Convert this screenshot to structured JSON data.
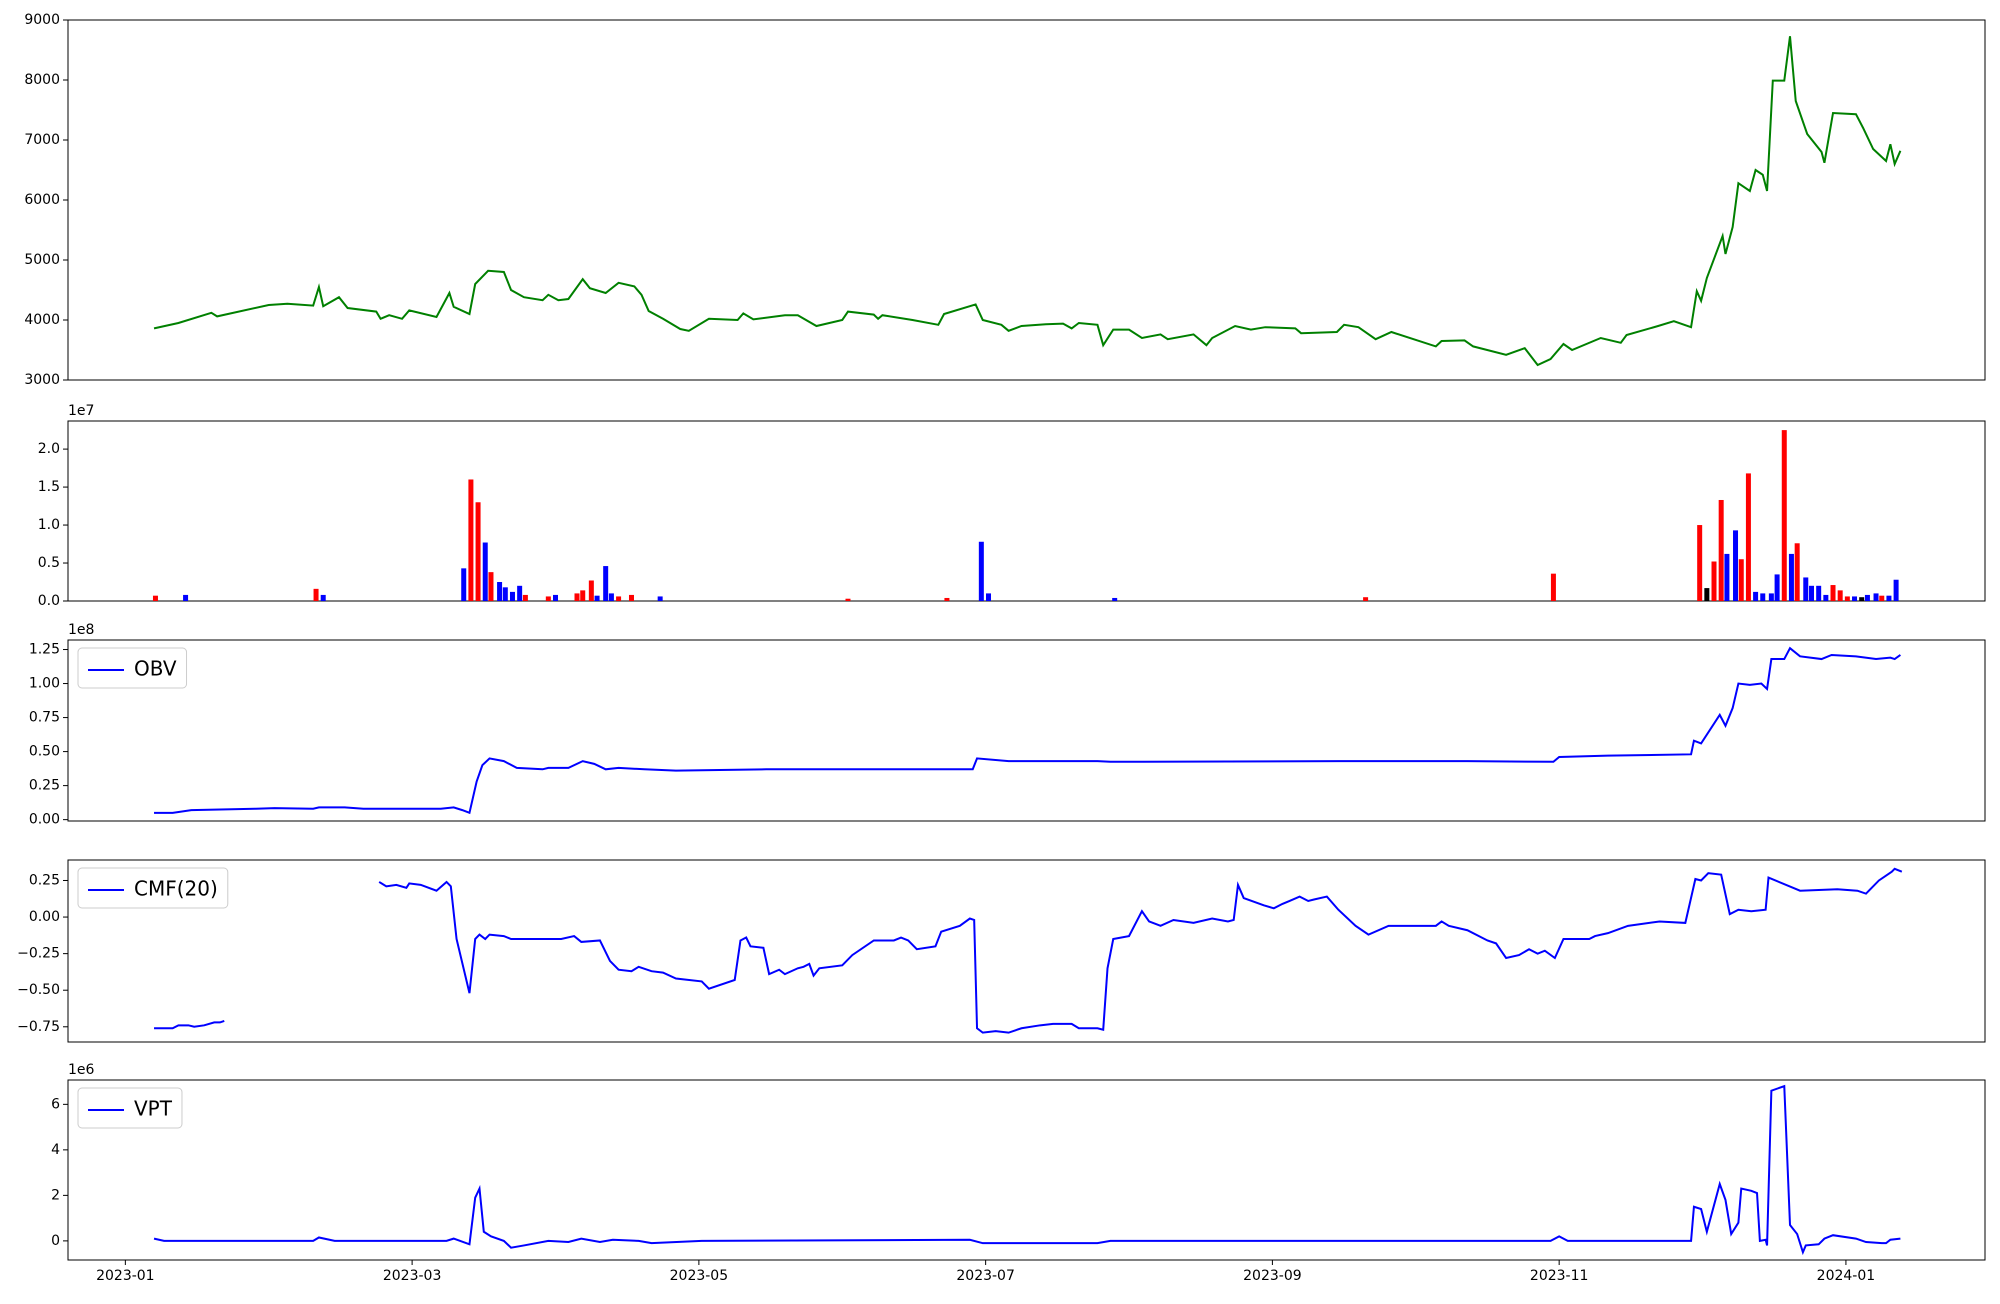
{
  "chart_data": [
    {
      "type": "line",
      "color": "#008000",
      "xlim": [
        -0.4,
        12.97
      ],
      "ylim": [
        3000,
        9000
      ],
      "yticks": [
        3000,
        4000,
        5000,
        6000,
        7000,
        8000,
        9000
      ],
      "x": [
        0.2,
        0.37,
        0.6,
        0.64,
        1.0,
        1.13,
        1.31,
        1.35,
        1.38,
        1.49,
        1.55,
        1.75,
        1.78,
        1.84,
        1.93,
        1.98,
        2.17,
        2.26,
        2.29,
        2.4,
        2.44,
        2.53,
        2.64,
        2.69,
        2.78,
        2.91,
        2.95,
        3.02,
        3.09,
        3.19,
        3.24,
        3.35,
        3.44,
        3.55,
        3.6,
        3.65,
        3.75,
        3.87,
        3.93,
        4.07,
        4.27,
        4.31,
        4.38,
        4.6,
        4.69,
        4.82,
        5.0,
        5.04,
        5.22,
        5.25,
        5.28,
        5.49,
        5.67,
        5.71,
        5.93,
        5.98,
        6.11,
        6.16,
        6.25,
        6.42,
        6.54,
        6.6,
        6.65,
        6.78,
        6.82,
        6.89,
        7.0,
        7.09,
        7.22,
        7.27,
        7.45,
        7.54,
        7.58,
        7.74,
        7.85,
        7.95,
        8.16,
        8.2,
        8.45,
        8.5,
        8.6,
        8.72,
        8.83,
        9.14,
        9.18,
        9.34,
        9.4,
        9.63,
        9.76,
        9.85,
        9.94,
        10.03,
        10.09,
        10.29,
        10.43,
        10.47,
        10.69,
        10.8,
        10.92,
        10.96,
        10.99,
        11.03,
        11.14,
        11.16,
        11.21,
        11.25,
        11.33,
        11.37,
        11.42,
        11.45,
        11.49,
        11.57,
        11.61,
        11.65,
        11.73,
        11.83,
        11.85,
        11.91,
        12.07,
        12.12,
        12.19,
        12.28,
        12.31,
        12.34,
        12.38
      ],
      "values": [
        3860,
        3950,
        4120,
        4060,
        4250,
        4270,
        4240,
        4550,
        4230,
        4380,
        4200,
        4140,
        4020,
        4080,
        4020,
        4160,
        4050,
        4450,
        4220,
        4100,
        4600,
        4820,
        4800,
        4500,
        4380,
        4330,
        4420,
        4330,
        4350,
        4680,
        4530,
        4450,
        4620,
        4560,
        4420,
        4150,
        4020,
        3850,
        3820,
        4020,
        4000,
        4110,
        4010,
        4080,
        4080,
        3900,
        4000,
        4140,
        4090,
        4020,
        4080,
        4000,
        3920,
        4100,
        4260,
        4000,
        3920,
        3820,
        3900,
        3930,
        3940,
        3860,
        3950,
        3920,
        3580,
        3840,
        3840,
        3700,
        3760,
        3680,
        3760,
        3580,
        3700,
        3900,
        3840,
        3880,
        3860,
        3780,
        3800,
        3920,
        3880,
        3680,
        3800,
        3560,
        3650,
        3660,
        3560,
        3420,
        3530,
        3250,
        3350,
        3600,
        3500,
        3700,
        3620,
        3750,
        3900,
        3980,
        3880,
        4480,
        4320,
        4700,
        5400,
        5100,
        5550,
        6280,
        6150,
        6500,
        6420,
        6150,
        7990,
        7990,
        8730,
        7650,
        7100,
        6800,
        6620,
        7450,
        7430,
        7200,
        6850,
        6650,
        6930,
        6600,
        6820
      ]
    },
    {
      "type": "bar",
      "y_offset_label": "1e7",
      "xlim": [
        -0.4,
        12.97
      ],
      "ylim": [
        0,
        2.37
      ],
      "yticks": [
        {
          "value": 0,
          "label": "0.0"
        },
        0.5,
        {
          "value": 1,
          "label": "1.0"
        },
        1.5,
        {
          "value": 2,
          "label": "2.0"
        }
      ],
      "x": [
        0.21,
        0.42,
        1.33,
        1.38,
        2.36,
        2.41,
        2.46,
        2.51,
        2.55,
        2.61,
        2.65,
        2.7,
        2.75,
        2.79,
        2.95,
        3.0,
        3.15,
        3.19,
        3.25,
        3.29,
        3.35,
        3.39,
        3.44,
        3.53,
        3.73,
        5.04,
        5.73,
        5.97,
        6.02,
        6.9,
        8.65,
        9.96,
        10.98,
        11.03,
        11.08,
        11.13,
        11.17,
        11.23,
        11.27,
        11.32,
        11.37,
        11.42,
        11.48,
        11.52,
        11.57,
        11.62,
        11.66,
        11.72,
        11.76,
        11.81,
        11.86,
        11.91,
        11.96,
        12.01,
        12.06,
        12.11,
        12.15,
        12.21,
        12.25,
        12.3,
        12.35
      ],
      "values": [
        0.07,
        0.08,
        0.16,
        0.08,
        0.43,
        1.6,
        1.3,
        0.77,
        0.38,
        0.25,
        0.18,
        0.12,
        0.2,
        0.08,
        0.06,
        0.08,
        0.1,
        0.14,
        0.27,
        0.07,
        0.46,
        0.1,
        0.06,
        0.08,
        0.06,
        0.03,
        0.04,
        0.78,
        0.1,
        0.04,
        0.05,
        0.36,
        1.0,
        0.17,
        0.52,
        1.33,
        0.62,
        0.93,
        0.55,
        1.68,
        0.12,
        0.1,
        0.1,
        0.35,
        2.25,
        0.62,
        0.76,
        0.31,
        0.2,
        0.2,
        0.08,
        0.21,
        0.14,
        0.06,
        0.06,
        0.05,
        0.08,
        0.1,
        0.07,
        0.07,
        0.28
      ],
      "colors": [
        "red",
        "blue",
        "red",
        "blue",
        "blue",
        "red",
        "red",
        "blue",
        "red",
        "blue",
        "blue",
        "blue",
        "blue",
        "red",
        "red",
        "blue",
        "red",
        "red",
        "red",
        "blue",
        "blue",
        "blue",
        "red",
        "red",
        "blue",
        "red",
        "red",
        "blue",
        "blue",
        "blue",
        "red",
        "red",
        "red",
        "black",
        "red",
        "red",
        "blue",
        "blue",
        "red",
        "red",
        "blue",
        "blue",
        "blue",
        "blue",
        "red",
        "blue",
        "red",
        "blue",
        "blue",
        "blue",
        "blue",
        "red",
        "red",
        "red",
        "blue",
        "black",
        "blue",
        "blue",
        "red",
        "blue",
        "blue"
      ]
    },
    {
      "type": "line",
      "y_offset_label": "1e8",
      "legend": "upper left",
      "xlim": [
        -0.4,
        12.97
      ],
      "ylim": [
        -0.01,
        1.32
      ],
      "yticks": [
        {
          "value": 0,
          "label": "0.00"
        },
        0.25,
        {
          "value": 0.5,
          "label": "0.50"
        },
        0.75,
        {
          "value": 1,
          "label": "1.00"
        },
        1.25
      ],
      "x": [
        0.2,
        0.33,
        0.46,
        0.91,
        1.04,
        1.31,
        1.35,
        1.53,
        1.66,
        2.2,
        2.29,
        2.35,
        2.4,
        2.45,
        2.49,
        2.54,
        2.64,
        2.73,
        2.91,
        2.95,
        3.09,
        3.19,
        3.27,
        3.35,
        3.44,
        3.62,
        3.84,
        4.47,
        5.36,
        5.91,
        5.94,
        6.16,
        6.78,
        6.87,
        8.47,
        9.36,
        9.96,
        10.0,
        10.34,
        10.92,
        10.94,
        10.99,
        11.12,
        11.16,
        11.21,
        11.25,
        11.33,
        11.41,
        11.45,
        11.48,
        11.57,
        11.61,
        11.68,
        11.83,
        11.9,
        12.07,
        12.21,
        12.31,
        12.34,
        12.38
      ],
      "series": [
        {
          "name": "OBV",
          "color": "#0000ff",
          "values": [
            0.05,
            0.05,
            0.07,
            0.08,
            0.085,
            0.08,
            0.09,
            0.09,
            0.08,
            0.08,
            0.09,
            0.07,
            0.05,
            0.28,
            0.4,
            0.45,
            0.43,
            0.38,
            0.37,
            0.38,
            0.38,
            0.43,
            0.41,
            0.37,
            0.38,
            0.37,
            0.36,
            0.37,
            0.37,
            0.37,
            0.45,
            0.43,
            0.43,
            0.425,
            0.43,
            0.43,
            0.425,
            0.46,
            0.47,
            0.48,
            0.58,
            0.56,
            0.77,
            0.69,
            0.82,
            1.0,
            0.99,
            1.0,
            0.96,
            1.18,
            1.18,
            1.26,
            1.2,
            1.18,
            1.21,
            1.2,
            1.18,
            1.19,
            1.18,
            1.21
          ]
        }
      ]
    },
    {
      "type": "line",
      "legend": "upper left",
      "xlim": [
        -0.4,
        12.97
      ],
      "ylim": [
        -0.854,
        0.39
      ],
      "yticks": [
        {
          "value": -0.75,
          "label": "−0.75"
        },
        {
          "value": -0.5,
          "label": "−0.50"
        },
        {
          "value": -0.25,
          "label": "−0.25"
        },
        {
          "value": 0,
          "label": "0.00"
        },
        0.25
      ],
      "x": [
        0.2,
        0.33,
        0.37,
        0.44,
        0.48,
        0.55,
        0.62,
        0.66,
        0.69,
        null,
        1.77,
        1.82,
        1.89,
        1.96,
        1.98,
        2.06,
        2.17,
        2.24,
        2.27,
        2.31,
        2.4,
        2.44,
        2.47,
        2.51,
        2.54,
        2.64,
        2.69,
        2.78,
        3.04,
        3.13,
        3.18,
        3.31,
        3.38,
        3.44,
        3.53,
        3.58,
        3.67,
        3.75,
        3.84,
        4.02,
        4.07,
        4.25,
        4.29,
        4.33,
        4.36,
        4.45,
        4.49,
        4.56,
        4.6,
        4.69,
        4.73,
        4.77,
        4.8,
        4.84,
        5.0,
        5.07,
        5.22,
        5.36,
        5.41,
        5.46,
        5.52,
        5.65,
        5.69,
        5.82,
        5.89,
        5.92,
        5.94,
        5.98,
        6.07,
        6.16,
        6.25,
        6.38,
        6.47,
        6.6,
        6.65,
        6.78,
        6.82,
        6.85,
        6.89,
        7.0,
        7.09,
        7.14,
        7.22,
        7.31,
        7.45,
        7.58,
        7.69,
        7.73,
        7.76,
        7.8,
        7.94,
        8.01,
        8.07,
        8.12,
        8.19,
        8.25,
        8.29,
        8.38,
        8.46,
        8.58,
        8.67,
        8.81,
        9.14,
        9.18,
        9.23,
        9.36,
        9.5,
        9.56,
        9.63,
        9.72,
        9.79,
        9.85,
        9.9,
        9.97,
        10.03,
        10.21,
        10.25,
        10.34,
        10.48,
        10.7,
        10.88,
        10.95,
        10.99,
        11.04,
        11.13,
        11.19,
        11.25,
        11.34,
        11.44,
        11.46,
        11.68,
        11.94,
        12.08,
        12.14,
        12.23,
        12.32,
        12.34,
        12.39
      ],
      "series": [
        {
          "name": "CMF(20)",
          "color": "#0000ff",
          "values": [
            -0.76,
            -0.76,
            -0.74,
            -0.74,
            -0.75,
            -0.74,
            -0.72,
            -0.72,
            -0.71,
            null,
            0.24,
            0.21,
            0.22,
            0.2,
            0.23,
            0.22,
            0.18,
            0.24,
            0.21,
            -0.15,
            -0.52,
            -0.15,
            -0.12,
            -0.15,
            -0.12,
            -0.13,
            -0.15,
            -0.15,
            -0.15,
            -0.13,
            -0.17,
            -0.16,
            -0.3,
            -0.36,
            -0.37,
            -0.34,
            -0.37,
            -0.38,
            -0.42,
            -0.44,
            -0.49,
            -0.43,
            -0.16,
            -0.14,
            -0.2,
            -0.21,
            -0.39,
            -0.36,
            -0.39,
            -0.35,
            -0.34,
            -0.32,
            -0.4,
            -0.35,
            -0.33,
            -0.26,
            -0.16,
            -0.16,
            -0.14,
            -0.16,
            -0.22,
            -0.2,
            -0.1,
            -0.06,
            -0.01,
            -0.02,
            -0.76,
            -0.79,
            -0.78,
            -0.79,
            -0.76,
            -0.74,
            -0.73,
            -0.73,
            -0.76,
            -0.76,
            -0.77,
            -0.35,
            -0.15,
            -0.13,
            0.04,
            -0.03,
            -0.06,
            -0.02,
            -0.04,
            -0.01,
            -0.03,
            -0.02,
            0.22,
            0.13,
            0.08,
            0.06,
            0.09,
            0.11,
            0.14,
            0.11,
            0.12,
            0.14,
            0.05,
            -0.06,
            -0.12,
            -0.06,
            -0.06,
            -0.03,
            -0.06,
            -0.09,
            -0.16,
            -0.18,
            -0.28,
            -0.26,
            -0.22,
            -0.25,
            -0.23,
            -0.28,
            -0.15,
            -0.15,
            -0.13,
            -0.11,
            -0.06,
            -0.03,
            -0.04,
            0.26,
            0.25,
            0.3,
            0.29,
            0.02,
            0.05,
            0.04,
            0.05,
            0.27,
            0.18,
            0.19,
            0.18,
            0.16,
            0.25,
            0.31,
            0.33,
            0.31
          ]
        }
      ]
    },
    {
      "type": "line",
      "y_offset_label": "1e6",
      "legend": "upper left",
      "xlim": [
        -0.4,
        12.97
      ],
      "ylim": [
        -0.84,
        7.07
      ],
      "yticks": [
        0,
        2,
        4,
        6
      ],
      "xticks": [
        {
          "value": 0,
          "label": "2023-01"
        },
        {
          "value": 2,
          "label": "2023-03"
        },
        {
          "value": 4,
          "label": "2023-05"
        },
        {
          "value": 6,
          "label": "2023-07"
        },
        {
          "value": 8,
          "label": "2023-09"
        },
        {
          "value": 10,
          "label": "2023-11"
        },
        {
          "value": 12,
          "label": "2024-01"
        }
      ],
      "x": [
        0.2,
        0.27,
        0.91,
        1.31,
        1.35,
        1.46,
        1.53,
        2.24,
        2.29,
        2.4,
        2.44,
        2.47,
        2.5,
        2.55,
        2.64,
        2.69,
        2.78,
        2.95,
        3.09,
        3.18,
        3.31,
        3.4,
        3.58,
        3.67,
        4.02,
        5.89,
        5.98,
        6.78,
        6.87,
        9.94,
        10.0,
        10.06,
        10.92,
        10.94,
        10.99,
        11.03,
        11.12,
        11.16,
        11.2,
        11.25,
        11.27,
        11.34,
        11.38,
        11.4,
        11.44,
        11.45,
        11.48,
        11.57,
        11.61,
        11.66,
        11.7,
        11.72,
        11.81,
        11.85,
        11.91,
        12.07,
        12.14,
        12.25,
        12.28,
        12.31,
        12.38
      ],
      "series": [
        {
          "name": "VPT",
          "color": "#0000ff",
          "values": [
            0.1,
            0.0,
            0.0,
            0.0,
            0.15,
            0.0,
            0.0,
            0.0,
            0.1,
            -0.15,
            1.9,
            2.3,
            0.4,
            0.2,
            0.0,
            -0.3,
            -0.2,
            0.0,
            -0.05,
            0.1,
            -0.05,
            0.05,
            0.0,
            -0.1,
            0.0,
            0.05,
            -0.1,
            -0.1,
            0.0,
            0.0,
            0.2,
            0.0,
            0.0,
            1.5,
            1.4,
            0.4,
            2.5,
            1.8,
            0.3,
            0.8,
            2.3,
            2.2,
            2.1,
            0.0,
            0.05,
            -0.2,
            6.6,
            6.8,
            0.7,
            0.3,
            -0.5,
            -0.2,
            -0.15,
            0.1,
            0.25,
            0.1,
            -0.05,
            -0.1,
            -0.1,
            0.05,
            0.1
          ]
        }
      ]
    }
  ]
}
